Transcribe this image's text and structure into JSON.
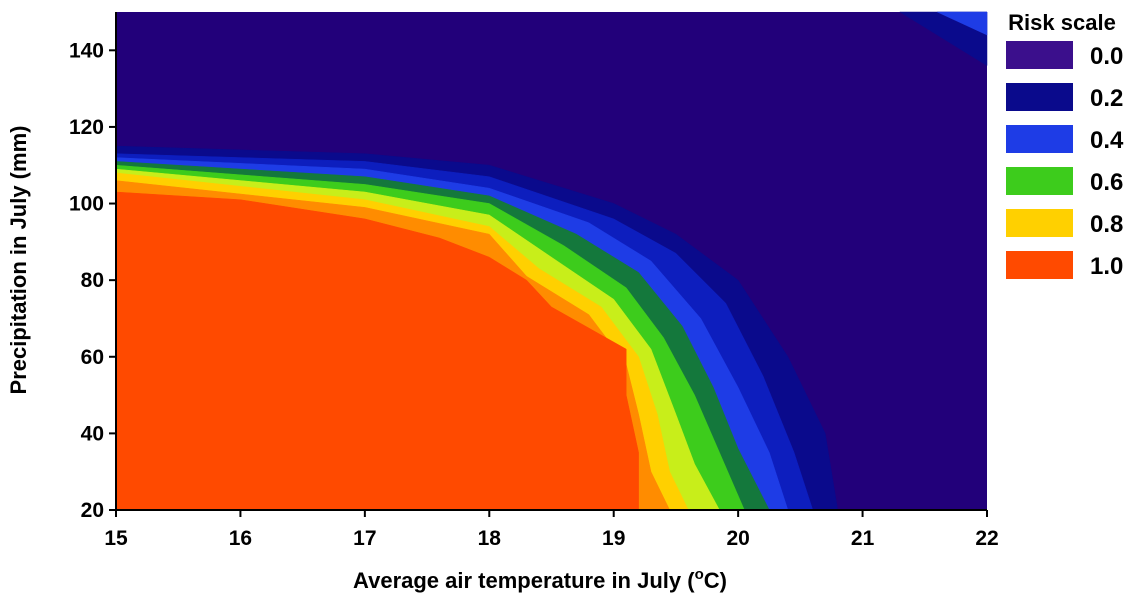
{
  "chart_data": {
    "type": "contour",
    "xlabel": {
      "main": "Average air temperature in July (",
      "sup": "o",
      "unit_end": "C)"
    },
    "ylabel": "Precipitation in July (mm)",
    "xlim": [
      15,
      22
    ],
    "ylim": [
      20,
      150
    ],
    "x_ticks": [
      15,
      16,
      17,
      18,
      19,
      20,
      21,
      22
    ],
    "y_ticks": [
      20,
      40,
      60,
      80,
      100,
      120,
      140
    ],
    "legend": {
      "title": "Risk scale",
      "placement": "right",
      "entries": [
        {
          "label": "0.0",
          "color": "#3b0f8c"
        },
        {
          "label": "0.2",
          "color": "#0a0a8c"
        },
        {
          "label": "0.4",
          "color": "#1e3ce6"
        },
        {
          "label": "0.6",
          "color": "#3dcc1c"
        },
        {
          "label": "0.8",
          "color": "#ffd000"
        },
        {
          "label": "1.0",
          "color": "#ff4a00"
        }
      ]
    },
    "background_color": "#22007a",
    "levels": [
      {
        "risk": 0.2,
        "color": "#0a0a8c",
        "boundary": [
          [
            15,
            115
          ],
          [
            17,
            113
          ],
          [
            18,
            110
          ],
          [
            19,
            100
          ],
          [
            19.5,
            92
          ],
          [
            20.0,
            80
          ],
          [
            20.4,
            60
          ],
          [
            20.7,
            40
          ],
          [
            20.8,
            20
          ]
        ]
      },
      {
        "risk": 0.3,
        "color": "#0d1ebe",
        "boundary": [
          [
            15,
            113
          ],
          [
            17,
            111
          ],
          [
            18,
            107
          ],
          [
            19,
            96
          ],
          [
            19.5,
            87
          ],
          [
            19.9,
            74
          ],
          [
            20.2,
            55
          ],
          [
            20.45,
            35
          ],
          [
            20.6,
            20
          ]
        ]
      },
      {
        "risk": 0.4,
        "color": "#1e3ce6",
        "boundary": [
          [
            15,
            112
          ],
          [
            17,
            109
          ],
          [
            18,
            104
          ],
          [
            18.8,
            95
          ],
          [
            19.3,
            85
          ],
          [
            19.7,
            70
          ],
          [
            20.0,
            52
          ],
          [
            20.25,
            35
          ],
          [
            20.4,
            20
          ]
        ]
      },
      {
        "risk": 0.5,
        "color": "#14783c",
        "boundary": [
          [
            15,
            111
          ],
          [
            17,
            107
          ],
          [
            18,
            102
          ],
          [
            18.7,
            92
          ],
          [
            19.2,
            82
          ],
          [
            19.55,
            68
          ],
          [
            19.8,
            52
          ],
          [
            20.0,
            36
          ],
          [
            20.25,
            20
          ]
        ]
      },
      {
        "risk": 0.6,
        "color": "#3dcc1c",
        "boundary": [
          [
            15,
            110
          ],
          [
            17,
            105
          ],
          [
            18,
            100
          ],
          [
            18.6,
            89
          ],
          [
            19.1,
            78
          ],
          [
            19.4,
            65
          ],
          [
            19.65,
            50
          ],
          [
            19.85,
            35
          ],
          [
            20.05,
            20
          ]
        ]
      },
      {
        "risk": 0.7,
        "color": "#c8ee1a",
        "boundary": [
          [
            15,
            109
          ],
          [
            17,
            103
          ],
          [
            18,
            97
          ],
          [
            18.5,
            86
          ],
          [
            19.0,
            75
          ],
          [
            19.3,
            62
          ],
          [
            19.5,
            45
          ],
          [
            19.65,
            32
          ],
          [
            19.85,
            20
          ]
        ]
      },
      {
        "risk": 0.8,
        "color": "#ffd000",
        "boundary": [
          [
            15,
            108
          ],
          [
            17,
            101
          ],
          [
            18,
            94
          ],
          [
            18.4,
            83
          ],
          [
            18.9,
            73
          ],
          [
            19.2,
            60
          ],
          [
            19.35,
            45
          ],
          [
            19.45,
            30
          ],
          [
            19.6,
            20
          ]
        ]
      },
      {
        "risk": 0.9,
        "color": "#ff8c00",
        "boundary": [
          [
            15,
            106
          ],
          [
            17,
            99
          ],
          [
            18,
            92
          ],
          [
            18.3,
            81
          ],
          [
            18.8,
            71
          ],
          [
            19.1,
            58
          ],
          [
            19.2,
            45
          ],
          [
            19.3,
            30
          ],
          [
            19.45,
            20
          ]
        ]
      },
      {
        "risk": 1.0,
        "color": "#ff4a00",
        "boundary": [
          [
            15,
            103
          ],
          [
            16,
            101
          ],
          [
            17,
            96
          ],
          [
            17.6,
            91
          ],
          [
            18,
            86
          ],
          [
            18.3,
            80
          ],
          [
            18.5,
            73
          ],
          [
            19.1,
            62
          ],
          [
            19.1,
            50
          ],
          [
            19.2,
            35
          ],
          [
            19.2,
            20
          ]
        ]
      },
      {
        "risk": 0.2,
        "color": "#0a0a8c",
        "boundary": [
          [
            21.3,
            150
          ],
          [
            21.5,
            146
          ],
          [
            21.8,
            140
          ],
          [
            22,
            136
          ],
          [
            22,
            150
          ]
        ],
        "closed": true
      },
      {
        "risk": 0.4,
        "color": "#1e3ce6",
        "boundary": [
          [
            21.6,
            150
          ],
          [
            21.8,
            147
          ],
          [
            22,
            144
          ],
          [
            22,
            150
          ]
        ],
        "closed": true
      }
    ]
  }
}
